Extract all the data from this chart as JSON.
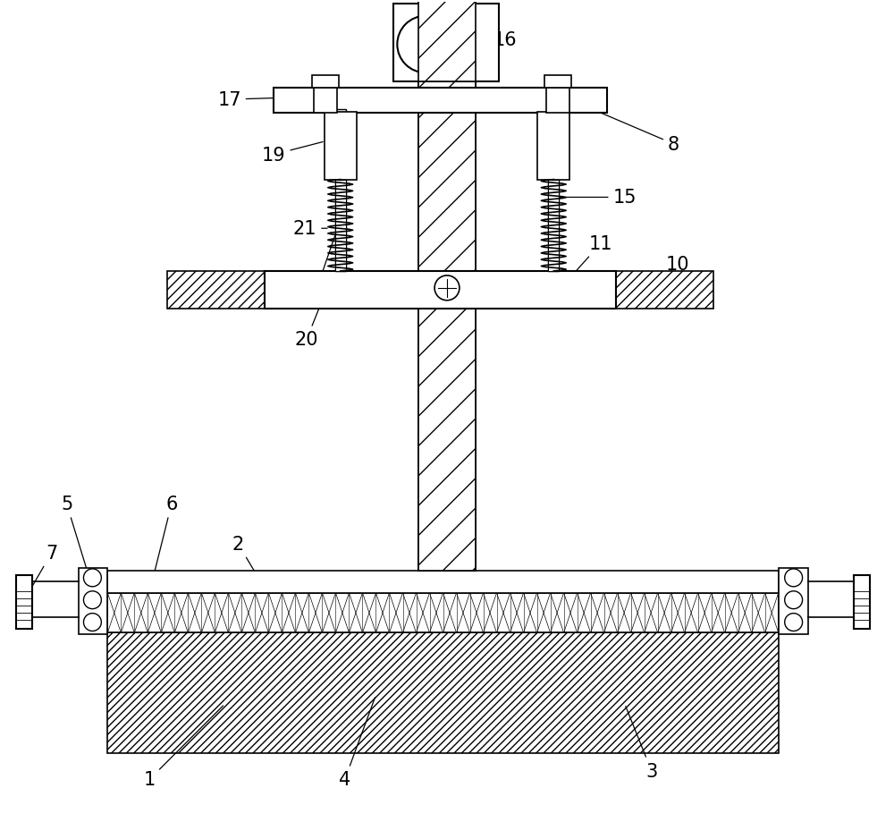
{
  "bg_color": "#ffffff",
  "line_color": "#000000",
  "fig_width": 10.0,
  "fig_height": 9.2,
  "dpi": 100
}
